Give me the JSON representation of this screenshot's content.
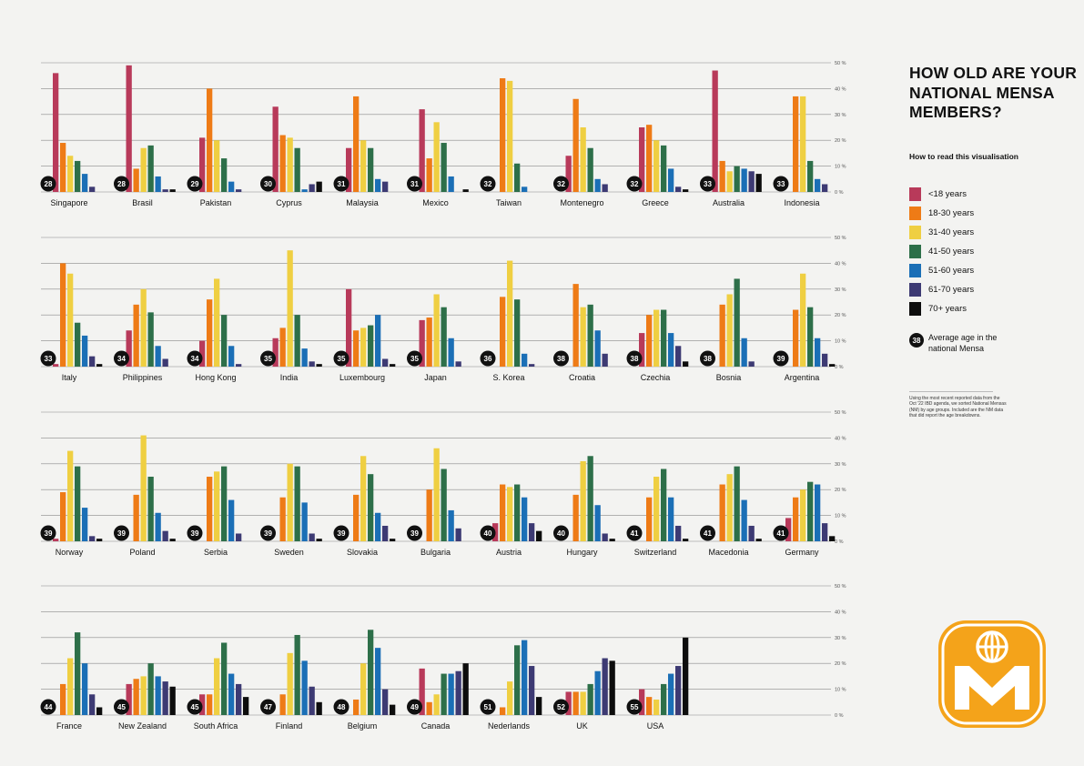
{
  "title": "HOW OLD ARE YOUR NATIONAL MENSA MEMBERS?",
  "how_to_read": "How to read this visualisation",
  "avg_key": {
    "badge": "38",
    "label": "Average age in the national Mensa"
  },
  "note": "Using the most recent reported data from the Oct '22 IBD agenda, we sorted National Mensas (NM) by age groups. Included are the NM data that did report the age breakdowns.",
  "logo": {
    "name": "Mensa logo",
    "colors": {
      "orange": "#f4a31a",
      "white": "#ffffff"
    }
  },
  "chart_data": {
    "type": "bar",
    "ylim": [
      0,
      50
    ],
    "yticks": [
      "0 %",
      "10 %",
      "20 %",
      "30 %",
      "40 %",
      "50 %"
    ],
    "series": [
      {
        "name": "<18 years",
        "color": "#b83a5a"
      },
      {
        "name": "18-30 years",
        "color": "#ee7b16"
      },
      {
        "name": "31-40 years",
        "color": "#efcf42"
      },
      {
        "name": "41-50 years",
        "color": "#2d6f49"
      },
      {
        "name": "51-60 years",
        "color": "#1b6fb6"
      },
      {
        "name": "61-70 years",
        "color": "#3d3a73"
      },
      {
        "name": "70+ years",
        "color": "#0d0d0d"
      }
    ],
    "rows": [
      [
        {
          "country": "Singapore",
          "avg": "28",
          "values": [
            46,
            19,
            14,
            12,
            7,
            2,
            0
          ]
        },
        {
          "country": "Brasil",
          "avg": "28",
          "values": [
            49,
            9,
            17,
            18,
            6,
            1,
            1
          ]
        },
        {
          "country": "Pakistan",
          "avg": "29",
          "values": [
            21,
            40,
            20,
            13,
            4,
            1,
            0
          ]
        },
        {
          "country": "Cyprus",
          "avg": "30",
          "values": [
            33,
            22,
            21,
            17,
            1,
            3,
            4
          ]
        },
        {
          "country": "Malaysia",
          "avg": "31",
          "values": [
            17,
            37,
            20,
            17,
            5,
            4,
            0
          ]
        },
        {
          "country": "Mexico",
          "avg": "31",
          "values": [
            32,
            13,
            27,
            19,
            6,
            0,
            1
          ]
        },
        {
          "country": "Taiwan",
          "avg": "32",
          "values": [
            0,
            44,
            43,
            11,
            2,
            0,
            0
          ]
        },
        {
          "country": "Montenegro",
          "avg": "32",
          "values": [
            14,
            36,
            25,
            17,
            5,
            3,
            0
          ]
        },
        {
          "country": "Greece",
          "avg": "32",
          "values": [
            25,
            26,
            20,
            18,
            9,
            2,
            1
          ]
        },
        {
          "country": "Australia",
          "avg": "33",
          "values": [
            47,
            12,
            8,
            10,
            9,
            8,
            7
          ]
        },
        {
          "country": "Indonesia",
          "avg": "33",
          "values": [
            0,
            37,
            37,
            12,
            5,
            3,
            0
          ]
        }
      ],
      [
        {
          "country": "Italy",
          "avg": "33",
          "values": [
            1,
            40,
            36,
            17,
            12,
            4,
            1
          ]
        },
        {
          "country": "Philippines",
          "avg": "34",
          "values": [
            14,
            24,
            30,
            21,
            8,
            3,
            0
          ]
        },
        {
          "country": "Hong Kong",
          "avg": "34",
          "values": [
            10,
            26,
            34,
            20,
            8,
            1,
            0
          ]
        },
        {
          "country": "India",
          "avg": "35",
          "values": [
            11,
            15,
            45,
            20,
            7,
            2,
            1
          ]
        },
        {
          "country": "Luxembourg",
          "avg": "35",
          "values": [
            30,
            14,
            15,
            16,
            20,
            3,
            1
          ]
        },
        {
          "country": "Japan",
          "avg": "35",
          "values": [
            18,
            19,
            28,
            23,
            11,
            2,
            0
          ]
        },
        {
          "country": "S. Korea",
          "avg": "36",
          "values": [
            0,
            27,
            41,
            26,
            5,
            1,
            0
          ]
        },
        {
          "country": "Croatia",
          "avg": "38",
          "values": [
            0,
            32,
            23,
            24,
            14,
            5,
            0
          ]
        },
        {
          "country": "Czechia",
          "avg": "38",
          "values": [
            13,
            20,
            22,
            22,
            13,
            8,
            2
          ]
        },
        {
          "country": "Bosnia",
          "avg": "38",
          "values": [
            0,
            24,
            28,
            34,
            11,
            2,
            0
          ]
        },
        {
          "country": "Argentina",
          "avg": "39",
          "values": [
            0,
            22,
            36,
            23,
            11,
            5,
            1
          ]
        }
      ],
      [
        {
          "country": "Norway",
          "avg": "39",
          "values": [
            1,
            19,
            35,
            29,
            13,
            2,
            1
          ]
        },
        {
          "country": "Poland",
          "avg": "39",
          "values": [
            0,
            18,
            41,
            25,
            11,
            4,
            1
          ]
        },
        {
          "country": "Serbia",
          "avg": "39",
          "values": [
            0,
            25,
            27,
            29,
            16,
            3,
            0
          ]
        },
        {
          "country": "Sweden",
          "avg": "39",
          "values": [
            0,
            17,
            30,
            29,
            15,
            3,
            1
          ]
        },
        {
          "country": "Slovakia",
          "avg": "39",
          "values": [
            0,
            18,
            33,
            26,
            11,
            6,
            1
          ]
        },
        {
          "country": "Bulgaria",
          "avg": "39",
          "values": [
            0,
            20,
            36,
            28,
            12,
            5,
            0
          ]
        },
        {
          "country": "Austria",
          "avg": "40",
          "values": [
            7,
            22,
            21,
            22,
            17,
            7,
            4
          ]
        },
        {
          "country": "Hungary",
          "avg": "40",
          "values": [
            0,
            18,
            31,
            33,
            14,
            3,
            1
          ]
        },
        {
          "country": "Switzerland",
          "avg": "41",
          "values": [
            0,
            17,
            25,
            28,
            17,
            6,
            1
          ]
        },
        {
          "country": "Macedonia",
          "avg": "41",
          "values": [
            0,
            22,
            26,
            29,
            16,
            6,
            1
          ]
        },
        {
          "country": "Germany",
          "avg": "41",
          "values": [
            9,
            17,
            20,
            23,
            22,
            7,
            2
          ]
        }
      ],
      [
        {
          "country": "France",
          "avg": "44",
          "values": [
            0,
            12,
            22,
            32,
            20,
            8,
            3
          ]
        },
        {
          "country": "New Zealand",
          "avg": "45",
          "values": [
            12,
            14,
            15,
            20,
            15,
            13,
            11
          ]
        },
        {
          "country": "South Africa",
          "avg": "45",
          "values": [
            8,
            8,
            22,
            28,
            16,
            12,
            7
          ]
        },
        {
          "country": "Finland",
          "avg": "47",
          "values": [
            0,
            8,
            24,
            31,
            21,
            11,
            5
          ]
        },
        {
          "country": "Belgium",
          "avg": "48",
          "values": [
            0,
            6,
            20,
            33,
            26,
            10,
            4
          ]
        },
        {
          "country": "Canada",
          "avg": "49",
          "values": [
            18,
            5,
            8,
            16,
            16,
            17,
            20
          ]
        },
        {
          "country": "Nederlands",
          "avg": "51",
          "values": [
            0,
            3,
            13,
            27,
            29,
            19,
            7
          ]
        },
        {
          "country": "UK",
          "avg": "52",
          "values": [
            9,
            9,
            9,
            12,
            17,
            22,
            21
          ]
        },
        {
          "country": "USA",
          "avg": "55",
          "values": [
            10,
            7,
            6,
            12,
            16,
            19,
            30
          ]
        }
      ]
    ]
  }
}
